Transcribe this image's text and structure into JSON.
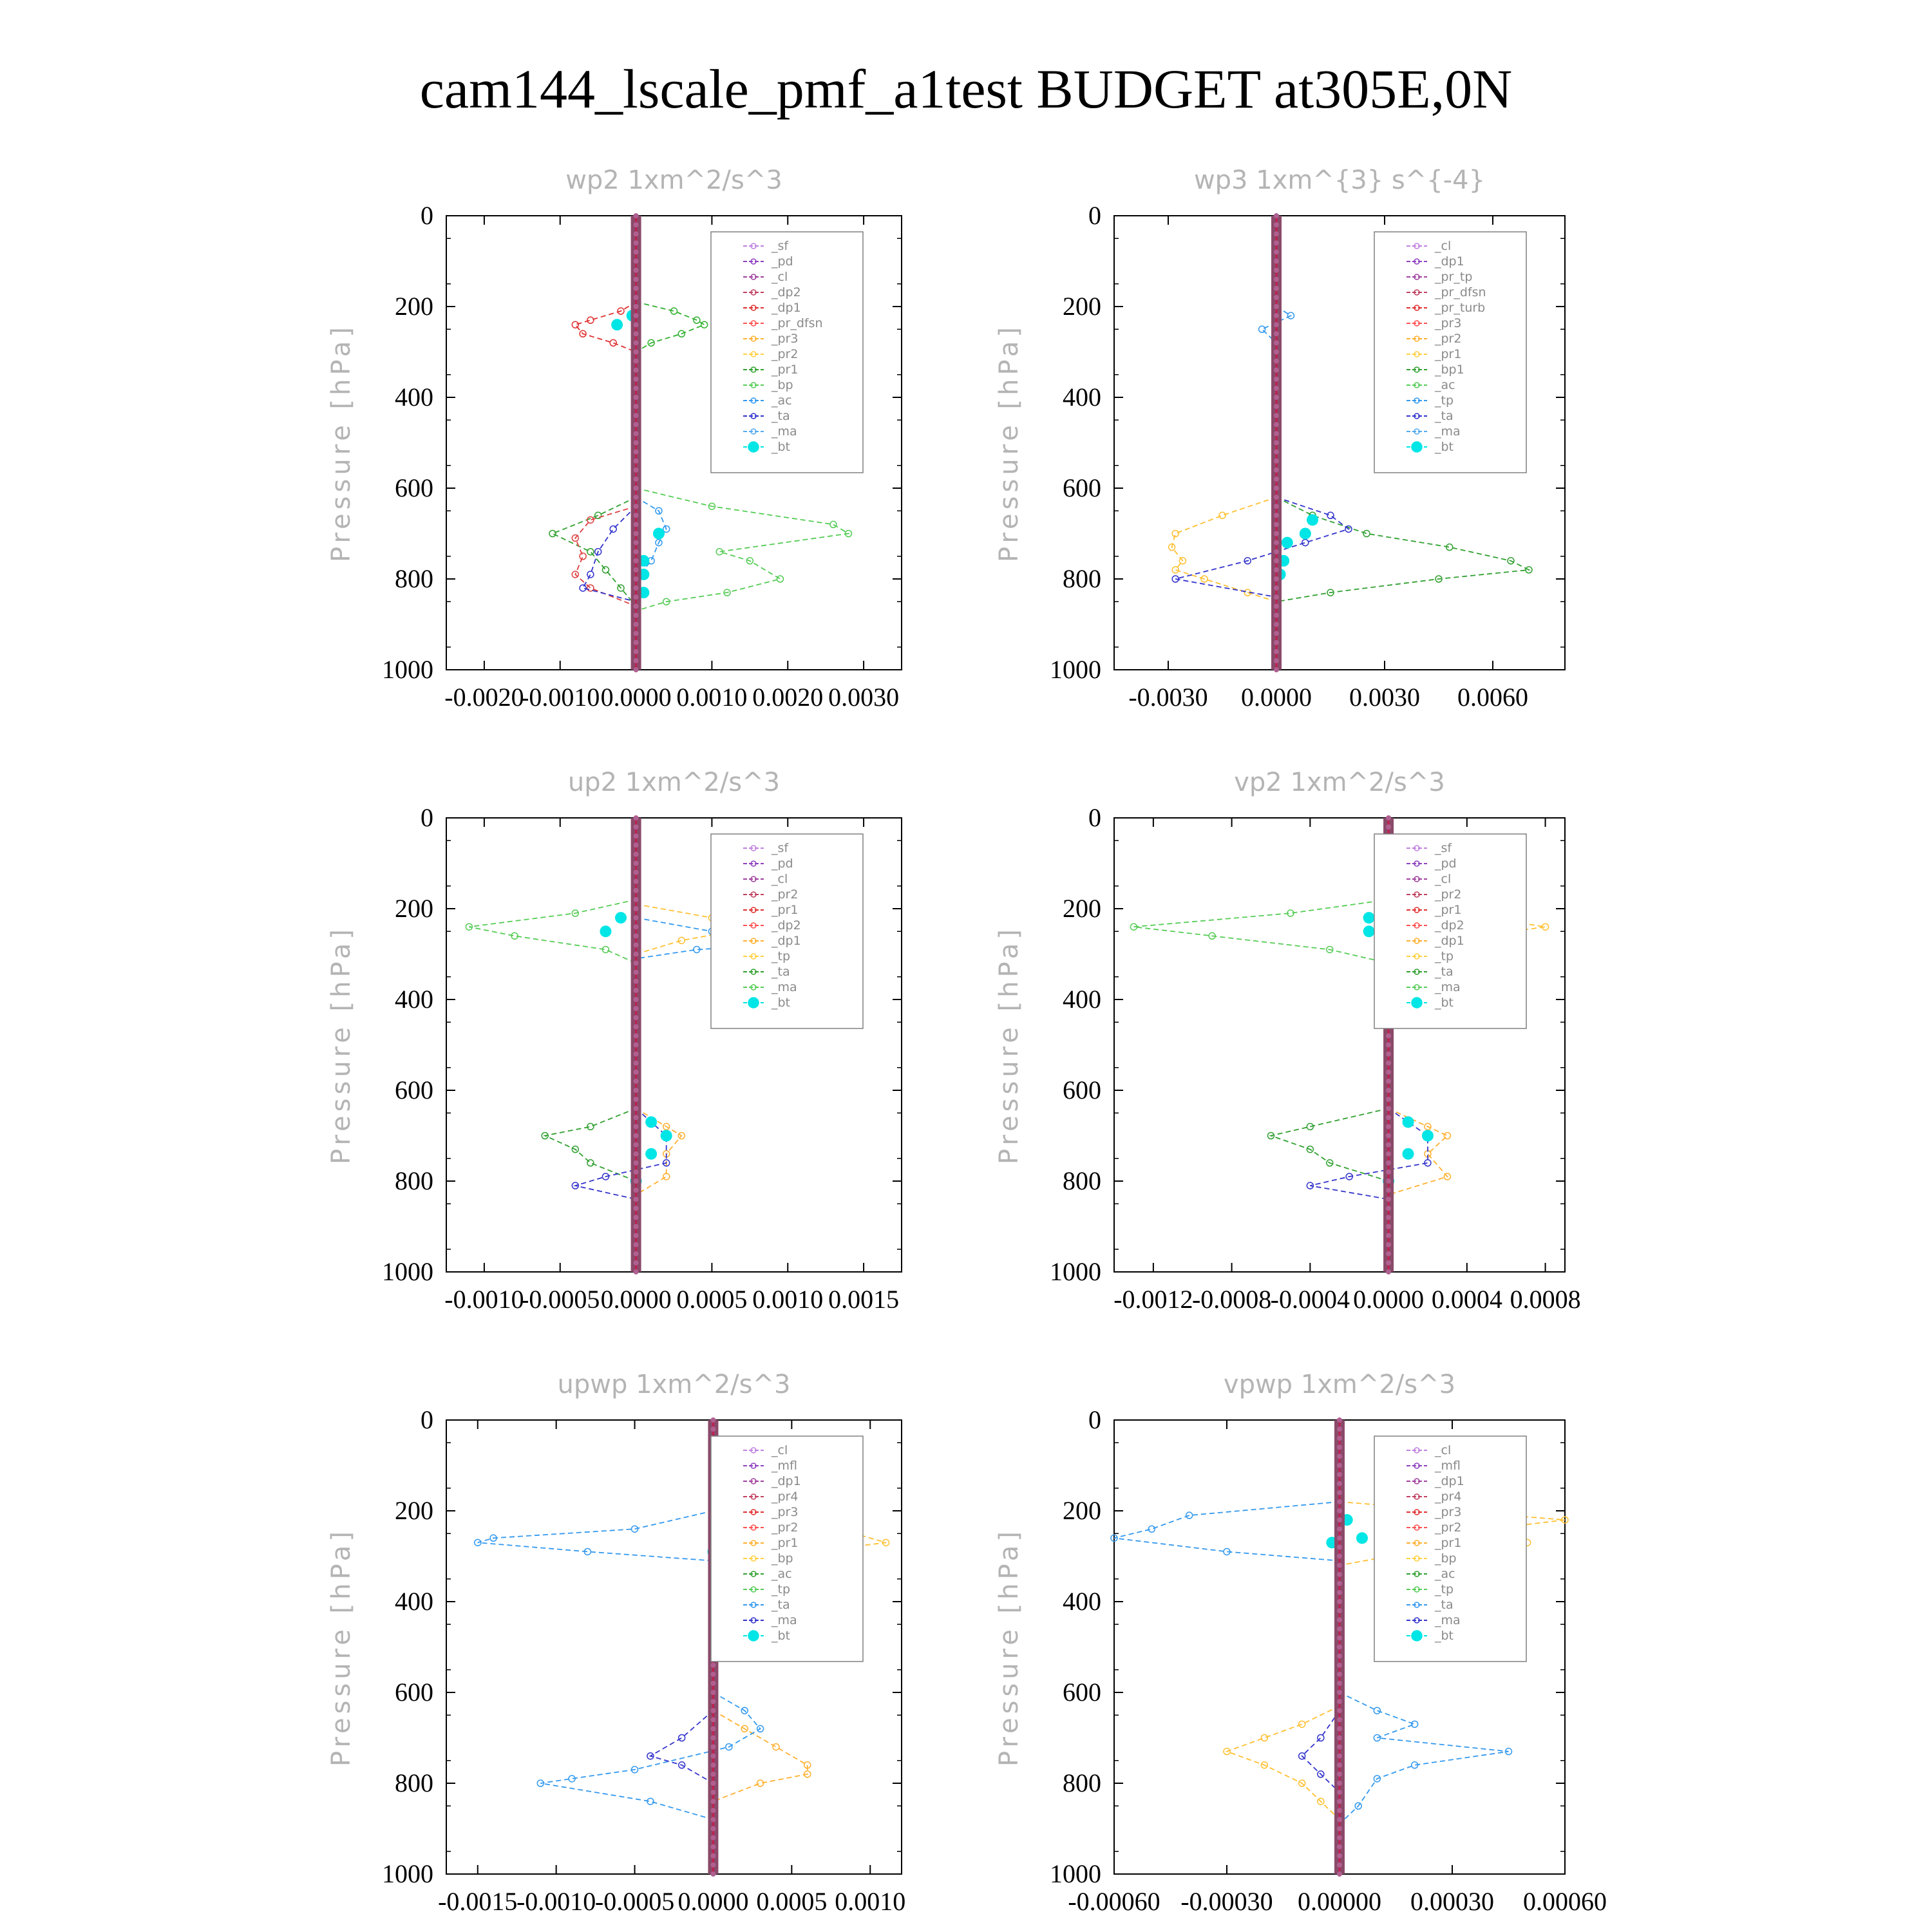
{
  "title": "cam144_lscale_pmf_a1test  BUDGET at305E,0N",
  "chart_data": [
    {
      "type": "line",
      "title": "wp2   1xm^2/s^3",
      "ylabel": "Pressure [hPa]",
      "ylim": [
        1000,
        0
      ],
      "xlim": [
        -0.0025,
        0.0035
      ],
      "xticks": [
        "-0.0020",
        "-0.0010",
        "0.0000",
        "0.0010",
        "0.0020",
        "0.0030"
      ],
      "xtick_values": [
        -0.002,
        -0.001,
        0,
        0.001,
        0.002,
        0.003
      ],
      "yticks": [
        "0",
        "200",
        "400",
        "600",
        "800",
        "1000"
      ],
      "legend_position": "top-right",
      "legend": [
        "_sf",
        "_pd",
        "_cl",
        "_dp2",
        "_dp1",
        "_pr_dfsn",
        "_pr3",
        "_pr2",
        "_pr1",
        "_bp",
        "_ac",
        "_ta",
        "_ma",
        "_bt"
      ],
      "series": [
        {
          "name": "_dp1",
          "color": "#e03030",
          "y": [
            190,
            210,
            230,
            240,
            260,
            280,
            300
          ],
          "values": [
            0,
            -0.0002,
            -0.0006,
            -0.0008,
            -0.0007,
            -0.0003,
            0
          ]
        },
        {
          "name": "_bp",
          "color": "#30b030",
          "y": [
            190,
            210,
            230,
            240,
            260,
            280,
            300
          ],
          "values": [
            0,
            0.0005,
            0.0008,
            0.0009,
            0.0006,
            0.0002,
            0
          ]
        },
        {
          "name": "_ac",
          "color": "#55cc55",
          "y": [
            600,
            640,
            680,
            700,
            740,
            760,
            800,
            830,
            850,
            870
          ],
          "values": [
            0,
            0.001,
            0.0026,
            0.0028,
            0.0011,
            0.0015,
            0.0019,
            0.0012,
            0.0004,
            0
          ]
        },
        {
          "name": "_pr1",
          "color": "#30a030",
          "y": [
            620,
            660,
            700,
            740,
            780,
            820,
            860
          ],
          "values": [
            0,
            -0.0005,
            -0.0011,
            -0.0006,
            -0.0004,
            -0.0002,
            0
          ]
        },
        {
          "name": "_dp2",
          "color": "#dd4040",
          "y": [
            640,
            670,
            710,
            750,
            790,
            820,
            860
          ],
          "values": [
            0,
            -0.0006,
            -0.0008,
            -0.0007,
            -0.0008,
            -0.0006,
            0
          ]
        },
        {
          "name": "_ta",
          "color": "#3333cc",
          "y": [
            640,
            690,
            740,
            790,
            820,
            850
          ],
          "values": [
            0,
            -0.0003,
            -0.0005,
            -0.0006,
            -0.0007,
            0
          ]
        },
        {
          "name": "_ma",
          "color": "#3399ee",
          "y": [
            620,
            650,
            690,
            720,
            760,
            800
          ],
          "values": [
            0,
            0.0003,
            0.0004,
            0.0003,
            0.0002,
            0
          ]
        },
        {
          "name": "_bt",
          "color": "#00e5e5",
          "y": [
            220,
            240,
            700,
            760,
            790,
            830
          ],
          "values": [
            -5e-05,
            -0.00025,
            0.0003,
            0.0001,
            0.0001,
            0.0001
          ]
        }
      ]
    },
    {
      "type": "line",
      "title": "wp3   1xm^{3} s^{-4}",
      "ylabel": "Pressure [hPa]",
      "ylim": [
        1000,
        0
      ],
      "xlim": [
        -0.0045,
        0.008
      ],
      "xticks": [
        "-0.0030",
        "0.0000",
        "0.0030",
        "0.0060"
      ],
      "xtick_values": [
        -0.003,
        0,
        0.003,
        0.006
      ],
      "yticks": [
        "0",
        "200",
        "400",
        "600",
        "800",
        "1000"
      ],
      "legend_position": "top-right",
      "legend": [
        "_cl",
        "_dp1",
        "_pr_tp",
        "_pr_dfsn",
        "_pr_turb",
        "_pr3",
        "_pr2",
        "_pr1",
        "_bp1",
        "_ac",
        "_tp",
        "_ta",
        "_ma",
        "_bt"
      ],
      "series": [
        {
          "name": "_ac",
          "color": "#30a030",
          "y": [
            620,
            660,
            700,
            730,
            760,
            780,
            800,
            830,
            850
          ],
          "values": [
            0,
            0.001,
            0.0025,
            0.0048,
            0.0065,
            0.007,
            0.0045,
            0.0015,
            0
          ]
        },
        {
          "name": "_pr2",
          "color": "#ffc030",
          "y": [
            620,
            660,
            700,
            730,
            760,
            780,
            800,
            830,
            850
          ],
          "values": [
            0,
            -0.0015,
            -0.0028,
            -0.0029,
            -0.0026,
            -0.0028,
            -0.002,
            -0.0008,
            0
          ]
        },
        {
          "name": "_ta",
          "color": "#3333cc",
          "y": [
            620,
            660,
            690,
            720,
            760,
            800,
            840
          ],
          "values": [
            0,
            0.0015,
            0.002,
            0.0008,
            -0.0008,
            -0.0028,
            0
          ]
        },
        {
          "name": "_tp",
          "color": "#3399ee",
          "y": [
            200,
            220,
            250,
            280
          ],
          "values": [
            0,
            0.0004,
            -0.0004,
            0
          ]
        },
        {
          "name": "_bt",
          "color": "#00e5e5",
          "y": [
            670,
            700,
            720,
            760,
            790
          ],
          "values": [
            0.001,
            0.0008,
            0.0003,
            0.0002,
            0.0001
          ]
        }
      ]
    },
    {
      "type": "line",
      "title": "up2   1xm^2/s^3",
      "ylabel": "Pressure [hPa]",
      "ylim": [
        1000,
        0
      ],
      "xlim": [
        -0.00125,
        0.00175
      ],
      "xticks": [
        "-0.0010",
        "-0.0005",
        "0.0000",
        "0.0005",
        "0.0010",
        "0.0015"
      ],
      "xtick_values": [
        -0.001,
        -0.0005,
        0,
        0.0005,
        0.001,
        0.0015
      ],
      "yticks": [
        "0",
        "200",
        "400",
        "600",
        "800",
        "1000"
      ],
      "legend_position": "top-right",
      "legend": [
        "_sf",
        "_pd",
        "_cl",
        "_pr2",
        "_pr1",
        "_dp2",
        "_dp1",
        "_tp",
        "_ta",
        "_ma",
        "_bt"
      ],
      "series": [
        {
          "name": "_dp1",
          "color": "#55cc55",
          "y": [
            180,
            210,
            240,
            260,
            290,
            320
          ],
          "values": [
            0,
            -0.0004,
            -0.0011,
            -0.0008,
            -0.0002,
            0
          ]
        },
        {
          "name": "_pr1",
          "color": "#ffc030",
          "y": [
            190,
            220,
            240,
            270,
            300
          ],
          "values": [
            0,
            0.0005,
            0.0008,
            0.0003,
            0
          ]
        },
        {
          "name": "_tp",
          "color": "#3399ee",
          "y": [
            220,
            250,
            270,
            290,
            310
          ],
          "values": [
            0,
            0.0005,
            0.0014,
            0.0004,
            0
          ]
        },
        {
          "name": "_pr2",
          "color": "#ffb030",
          "y": [
            640,
            680,
            700,
            740,
            790,
            830
          ],
          "values": [
            0,
            0.0002,
            0.0003,
            0.0002,
            0.0002,
            0
          ]
        },
        {
          "name": "_dp2",
          "color": "#30a030",
          "y": [
            640,
            680,
            700,
            730,
            760,
            800
          ],
          "values": [
            0,
            -0.0003,
            -0.0006,
            -0.0004,
            -0.0003,
            0
          ]
        },
        {
          "name": "_ta",
          "color": "#3333cc",
          "y": [
            640,
            700,
            760,
            790,
            810,
            840
          ],
          "values": [
            0,
            0.0002,
            0.0002,
            -0.0002,
            -0.0004,
            0
          ]
        },
        {
          "name": "_bt",
          "color": "#00e5e5",
          "y": [
            220,
            250,
            670,
            700,
            740,
            800
          ],
          "values": [
            -0.0001,
            -0.0002,
            0.0001,
            0.0002,
            0.0001,
            0
          ]
        }
      ]
    },
    {
      "type": "line",
      "title": "vp2   1xm^2/s^3",
      "ylabel": "Pressure [hPa]",
      "ylim": [
        1000,
        0
      ],
      "xlim": [
        -0.0014,
        0.0009
      ],
      "xticks": [
        "-0.0012",
        "-0.0008",
        "-0.0004",
        "0.0000",
        "0.0004",
        "0.0008"
      ],
      "xtick_values": [
        -0.0012,
        -0.0008,
        -0.0004,
        0,
        0.0004,
        0.0008
      ],
      "yticks": [
        "0",
        "200",
        "400",
        "600",
        "800",
        "1000"
      ],
      "legend_position": "top-right",
      "legend": [
        "_sf",
        "_pd",
        "_cl",
        "_pr2",
        "_pr1",
        "_dp2",
        "_dp1",
        "_tp",
        "_ta",
        "_ma",
        "_bt"
      ],
      "series": [
        {
          "name": "_dp1",
          "color": "#55cc55",
          "y": [
            180,
            210,
            240,
            260,
            290,
            320
          ],
          "values": [
            0,
            -0.0005,
            -0.0013,
            -0.0009,
            -0.0003,
            0
          ]
        },
        {
          "name": "_pr1",
          "color": "#ffc030",
          "y": [
            190,
            220,
            240,
            270,
            300
          ],
          "values": [
            0,
            0.0005,
            0.0008,
            0.0003,
            0
          ]
        },
        {
          "name": "_tp",
          "color": "#3399ee",
          "y": [
            200,
            230,
            260,
            290
          ],
          "values": [
            0,
            0.0002,
            0.0003,
            0
          ]
        },
        {
          "name": "_pr2",
          "color": "#ffb030",
          "y": [
            640,
            680,
            700,
            740,
            790,
            830
          ],
          "values": [
            0,
            0.0002,
            0.0003,
            0.0002,
            0.0003,
            0
          ]
        },
        {
          "name": "_dp2",
          "color": "#30a030",
          "y": [
            640,
            680,
            700,
            730,
            760,
            800
          ],
          "values": [
            0,
            -0.0004,
            -0.0006,
            -0.0004,
            -0.0003,
            0
          ]
        },
        {
          "name": "_ta",
          "color": "#3333cc",
          "y": [
            640,
            700,
            760,
            790,
            810,
            840
          ],
          "values": [
            0,
            0.0002,
            0.0002,
            -0.0002,
            -0.0004,
            0
          ]
        },
        {
          "name": "_bt",
          "color": "#00e5e5",
          "y": [
            220,
            250,
            670,
            700,
            740,
            800
          ],
          "values": [
            -0.0001,
            -0.0001,
            0.0001,
            0.0002,
            0.0001,
            0
          ]
        }
      ]
    },
    {
      "type": "line",
      "title": "upwp   1xm^2/s^3",
      "ylabel": "Pressure [hPa]",
      "ylim": [
        1000,
        0
      ],
      "xlim": [
        -0.0017,
        0.0012
      ],
      "xticks": [
        "-0.0015",
        "-0.0010",
        "-0.0005",
        "0.0000",
        "0.0005",
        "0.0010"
      ],
      "xtick_values": [
        -0.0015,
        -0.001,
        -0.0005,
        0,
        0.0005,
        0.001
      ],
      "yticks": [
        "0",
        "200",
        "400",
        "600",
        "800",
        "1000"
      ],
      "legend_position": "top-right",
      "legend": [
        "_cl",
        "_mfl",
        "_dp1",
        "_pr4",
        "_pr3",
        "_pr2",
        "_pr1",
        "_bp",
        "_ac",
        "_tp",
        "_ta",
        "_ma",
        "_bt"
      ],
      "series": [
        {
          "name": "_tp",
          "color": "#3399ee",
          "y": [
            200,
            240,
            260,
            270,
            290,
            310
          ],
          "values": [
            0,
            -0.0005,
            -0.0014,
            -0.0015,
            -0.0008,
            0
          ]
        },
        {
          "name": "_pr1",
          "color": "#ffc030",
          "y": [
            190,
            220,
            250,
            270,
            300,
            320
          ],
          "values": [
            0,
            0.0003,
            0.0009,
            0.0011,
            0.0004,
            0
          ]
        },
        {
          "name": "_pr2",
          "color": "#ffb030",
          "y": [
            640,
            680,
            720,
            760,
            780,
            800,
            840
          ],
          "values": [
            0,
            0.0002,
            0.0004,
            0.0006,
            0.0006,
            0.0003,
            0
          ]
        },
        {
          "name": "_ma",
          "color": "#3399ee",
          "y": [
            600,
            640,
            680,
            720,
            770,
            790,
            800,
            840,
            880
          ],
          "values": [
            0,
            0.0002,
            0.0003,
            0.0001,
            -0.0005,
            -0.0009,
            -0.0011,
            -0.0004,
            0
          ]
        },
        {
          "name": "_ta",
          "color": "#3333cc",
          "y": [
            640,
            700,
            740,
            760,
            800
          ],
          "values": [
            0,
            -0.0002,
            -0.0004,
            -0.0002,
            0
          ]
        },
        {
          "name": "_bt",
          "color": "#00e5e5",
          "y": [
            220,
            250,
            270,
            290
          ],
          "values": [
            0.0001,
            0.0003,
            0.0001,
            0
          ]
        }
      ]
    },
    {
      "type": "line",
      "title": "vpwp   1xm^2/s^3",
      "ylabel": "Pressure [hPa]",
      "ylim": [
        1000,
        0
      ],
      "xlim": [
        -0.0006,
        0.0006
      ],
      "xticks": [
        "-0.00060",
        "-0.00030",
        "0.00000",
        "0.00030",
        "0.00060"
      ],
      "xtick_values": [
        -0.0006,
        -0.0003,
        0,
        0.0003,
        0.0006
      ],
      "yticks": [
        "0",
        "200",
        "400",
        "600",
        "800",
        "1000"
      ],
      "legend_position": "top-right",
      "legend": [
        "_cl",
        "_mfl",
        "_dp1",
        "_pr4",
        "_pr3",
        "_pr2",
        "_pr1",
        "_bp",
        "_ac",
        "_tp",
        "_ta",
        "_ma",
        "_bt"
      ],
      "series": [
        {
          "name": "_tp",
          "color": "#3399ee",
          "y": [
            180,
            210,
            240,
            260,
            290,
            310
          ],
          "values": [
            0,
            -0.0004,
            -0.0005,
            -0.0006,
            -0.0003,
            0
          ]
        },
        {
          "name": "_pr1",
          "color": "#ffc030",
          "y": [
            180,
            220,
            240,
            270,
            290,
            320
          ],
          "values": [
            0,
            0.0006,
            0.0004,
            0.0005,
            0.0002,
            0
          ]
        },
        {
          "name": "_pr2",
          "color": "#ffc030",
          "y": [
            630,
            670,
            700,
            730,
            760,
            800,
            840,
            880
          ],
          "values": [
            0,
            -0.0001,
            -0.0002,
            -0.0003,
            -0.0002,
            -0.0001,
            -5e-05,
            0
          ]
        },
        {
          "name": "_ma",
          "color": "#3399ee",
          "y": [
            600,
            640,
            670,
            700,
            730,
            760,
            790,
            850,
            890
          ],
          "values": [
            0,
            0.0001,
            0.0002,
            0.0001,
            0.00045,
            0.0002,
            0.0001,
            5e-05,
            0
          ]
        },
        {
          "name": "_ta",
          "color": "#3333cc",
          "y": [
            640,
            700,
            740,
            780,
            820
          ],
          "values": [
            0,
            -5e-05,
            -0.0001,
            -5e-05,
            0
          ]
        },
        {
          "name": "_bt",
          "color": "#00e5e5",
          "y": [
            220,
            240,
            260,
            270
          ],
          "values": [
            2e-05,
            0.00012,
            6e-05,
            -2e-05
          ]
        }
      ]
    }
  ]
}
